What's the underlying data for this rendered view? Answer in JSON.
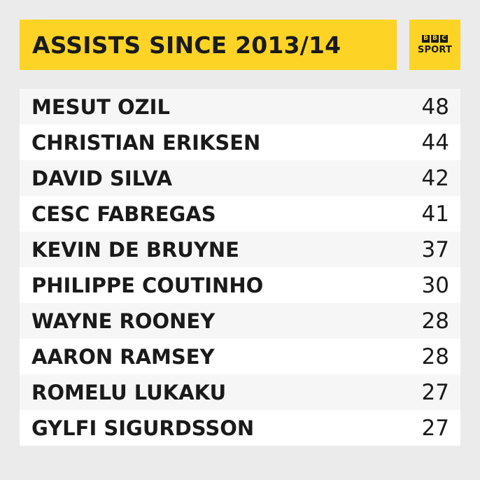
{
  "header": {
    "title": "ASSISTS SINCE 2013/14"
  },
  "logo": {
    "blocks": [
      "B",
      "B",
      "C"
    ],
    "word": "SPORT"
  },
  "colors": {
    "accent": "#fdd425",
    "background": "#ebebeb",
    "row_light": "#f6f6f6",
    "row_white": "#ffffff",
    "text": "#1a1a1a"
  },
  "chart_data": {
    "type": "table",
    "title": "ASSISTS SINCE 2013/14",
    "rows": [
      {
        "name": "MESUT OZIL",
        "value": 48
      },
      {
        "name": "CHRISTIAN ERIKSEN",
        "value": 44
      },
      {
        "name": "DAVID SILVA",
        "value": 42
      },
      {
        "name": "CESC FABREGAS",
        "value": 41
      },
      {
        "name": "KEVIN DE BRUYNE",
        "value": 37
      },
      {
        "name": "PHILIPPE COUTINHO",
        "value": 30
      },
      {
        "name": "WAYNE ROONEY",
        "value": 28
      },
      {
        "name": "AARON RAMSEY",
        "value": 28
      },
      {
        "name": "ROMELU LUKAKU",
        "value": 27
      },
      {
        "name": "GYLFI SIGURDSSON",
        "value": 27
      }
    ]
  }
}
